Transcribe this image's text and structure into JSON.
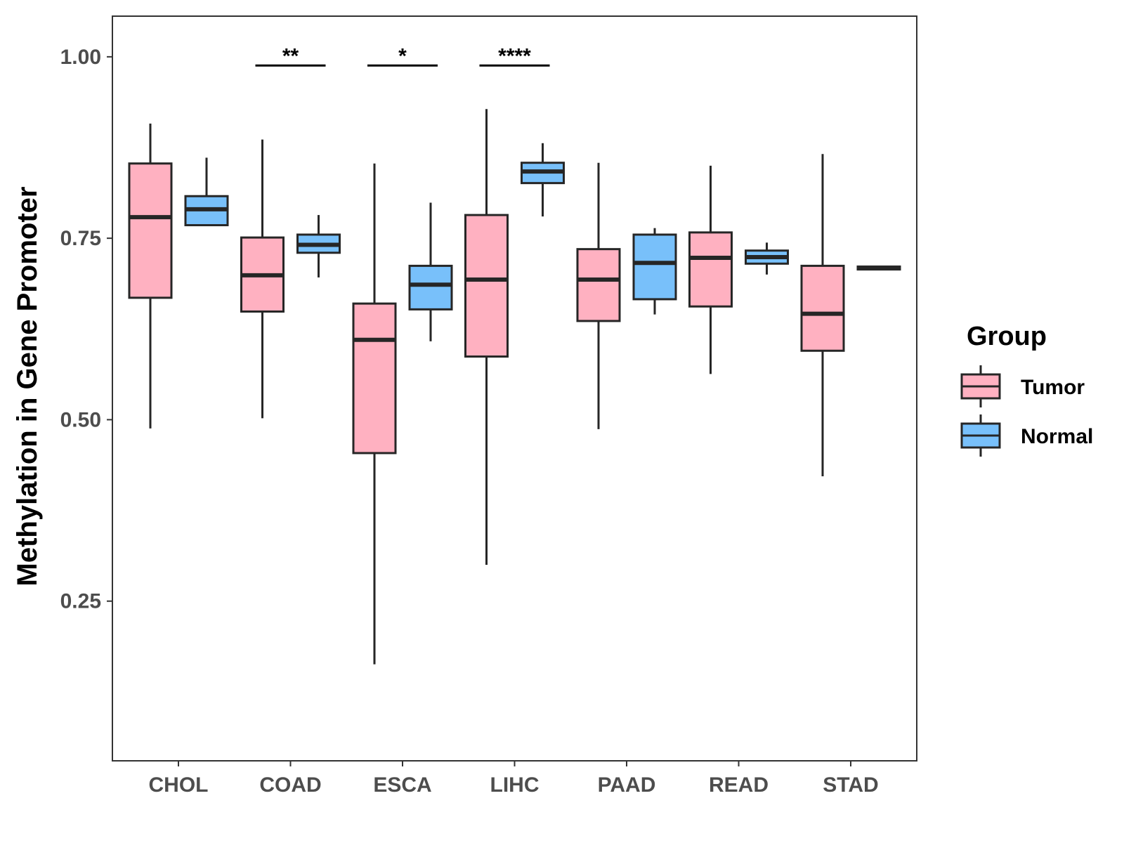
{
  "chart_data": {
    "type": "boxplot",
    "title": "",
    "xlabel": "",
    "ylabel": "Methylation in Gene Promoter",
    "ylim": [
      0.03,
      1.056
    ],
    "yticks": [
      0.25,
      0.5,
      0.75,
      1.0
    ],
    "ytick_labels": [
      "0.25",
      "0.50",
      "0.75",
      "1.00"
    ],
    "categories": [
      "CHOL",
      "COAD",
      "ESCA",
      "LIHC",
      "PAAD",
      "READ",
      "STAD"
    ],
    "grid": false,
    "legend": {
      "title": "Group",
      "position": "right",
      "entries": [
        {
          "name": "Tumor",
          "color": "#FFB1C1"
        },
        {
          "name": "Normal",
          "color": "#78C0FA"
        }
      ]
    },
    "series": [
      {
        "name": "Tumor",
        "color": "#FFB1C1",
        "boxes": [
          {
            "whisker_low": 0.488,
            "q1": 0.668,
            "median": 0.779,
            "q3": 0.853,
            "whisker_high": 0.908
          },
          {
            "whisker_low": 0.502,
            "q1": 0.649,
            "median": 0.699,
            "q3": 0.751,
            "whisker_high": 0.886
          },
          {
            "whisker_low": 0.163,
            "q1": 0.454,
            "median": 0.61,
            "q3": 0.66,
            "whisker_high": 0.853
          },
          {
            "whisker_low": 0.3,
            "q1": 0.587,
            "median": 0.693,
            "q3": 0.782,
            "whisker_high": 0.928
          },
          {
            "whisker_low": 0.487,
            "q1": 0.636,
            "median": 0.693,
            "q3": 0.735,
            "whisker_high": 0.854
          },
          {
            "whisker_low": 0.563,
            "q1": 0.656,
            "median": 0.723,
            "q3": 0.758,
            "whisker_high": 0.85
          },
          {
            "whisker_low": 0.422,
            "q1": 0.595,
            "median": 0.646,
            "q3": 0.712,
            "whisker_high": 0.866
          }
        ]
      },
      {
        "name": "Normal",
        "color": "#78C0FA",
        "boxes": [
          {
            "whisker_low": 0.767,
            "q1": 0.768,
            "median": 0.79,
            "q3": 0.808,
            "whisker_high": 0.861
          },
          {
            "whisker_low": 0.696,
            "q1": 0.73,
            "median": 0.741,
            "q3": 0.755,
            "whisker_high": 0.782
          },
          {
            "whisker_low": 0.608,
            "q1": 0.652,
            "median": 0.686,
            "q3": 0.712,
            "whisker_high": 0.799
          },
          {
            "whisker_low": 0.78,
            "q1": 0.826,
            "median": 0.842,
            "q3": 0.854,
            "whisker_high": 0.881
          },
          {
            "whisker_low": 0.645,
            "q1": 0.666,
            "median": 0.716,
            "q3": 0.755,
            "whisker_high": 0.764
          },
          {
            "whisker_low": 0.7,
            "q1": 0.715,
            "median": 0.724,
            "q3": 0.733,
            "whisker_high": 0.744
          },
          {
            "whisker_low": 0.706,
            "q1": 0.707,
            "median": 0.709,
            "q3": 0.711,
            "whisker_high": 0.712
          }
        ]
      }
    ],
    "annotations": [
      {
        "category": "COAD",
        "label": "**",
        "y": 0.988
      },
      {
        "category": "ESCA",
        "label": "*",
        "y": 0.988
      },
      {
        "category": "LIHC",
        "label": "****",
        "y": 0.988
      }
    ]
  }
}
